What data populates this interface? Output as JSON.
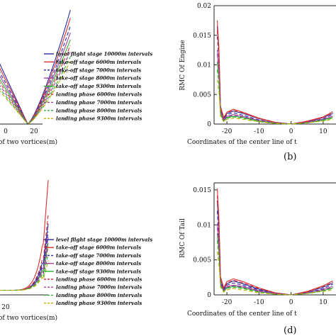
{
  "legend_entries": [
    {
      "name": "level flight stage 10000m intervals",
      "color": "#2a2aa8",
      "dash": "solid"
    },
    {
      "name": "take-off stage 6000m intervals",
      "color": "#d83030",
      "dash": "solid"
    },
    {
      "name": "take-off stage 7000m intervals",
      "color": "#2a2aa8",
      "dash": "dashed"
    },
    {
      "name": "take-off stage 8000m intervals",
      "color": "#a040a0",
      "dash": "solid"
    },
    {
      "name": "take-off stage 9300m intervals",
      "color": "#30b030",
      "dash": "solid"
    },
    {
      "name": "landing phase 6000m intervals",
      "color": "#d83030",
      "dash": "dashed"
    },
    {
      "name": "landing phase 7000m intervals",
      "color": "#a040a0",
      "dash": "dashed"
    },
    {
      "name": "landing phase 8000m intervals",
      "color": "#30b030",
      "dash": "dashed"
    },
    {
      "name": "landing phase 9300m intervals",
      "color": "#c0b000",
      "dash": "dashed"
    }
  ],
  "chart_data": [
    {
      "type": "line",
      "panel": "a",
      "xlabel_visible": "of two vortices(m)",
      "x_ticks": [
        "0",
        "20"
      ],
      "x_range": [
        -8,
        28
      ],
      "y_range": [
        0,
        1
      ],
      "series": [
        {
          "values_at_x_24": 1.0
        },
        {
          "values_at_x_24": 0.93
        },
        {
          "values_at_x_24": 0.86
        },
        {
          "values_at_x_24": 0.8
        },
        {
          "values_at_x_24": 0.74
        },
        {
          "values_at_x_24": 0.69
        },
        {
          "values_at_x_24": 0.64
        },
        {
          "values_at_x_24": 0.59
        },
        {
          "values_at_x_24": 0.55
        }
      ]
    },
    {
      "type": "line",
      "panel": "b",
      "ylabel": "RMC Of Engine",
      "xlabel_visible": "Coordinates of the center line of t",
      "y_ticks": [
        "0",
        "0.005",
        "0.01",
        "0.015",
        "0.02"
      ],
      "x_ticks": [
        "-20",
        "-10",
        "0",
        "10"
      ],
      "x_range": [
        -24,
        14
      ],
      "y_range": [
        0,
        0.02
      ],
      "x": [
        -23,
        -22.5,
        -22,
        -21,
        -20,
        -18,
        -15,
        -10,
        -5,
        0,
        5,
        10,
        13
      ],
      "series": [
        {
          "values": [
            0.0165,
            0.0122,
            0.0025,
            0.0009,
            0.0018,
            0.0022,
            0.0018,
            0.0009,
            0.0003,
            0.0,
            0.0004,
            0.0011,
            0.0018
          ]
        },
        {
          "values": [
            0.0175,
            0.013,
            0.003,
            0.0011,
            0.002,
            0.0025,
            0.002,
            0.001,
            0.0003,
            0.0,
            0.0005,
            0.0012,
            0.0021
          ]
        },
        {
          "values": [
            0.0148,
            0.011,
            0.0026,
            0.0008,
            0.0016,
            0.0019,
            0.0015,
            0.0007,
            0.0002,
            0.0,
            0.0003,
            0.0009,
            0.0016
          ]
        },
        {
          "values": [
            0.0125,
            0.0092,
            0.0021,
            0.0007,
            0.0013,
            0.0016,
            0.0013,
            0.0006,
            0.0002,
            0.0,
            0.0003,
            0.0008,
            0.0013
          ]
        },
        {
          "values": [
            0.0105,
            0.0078,
            0.0018,
            0.0005,
            0.0011,
            0.0013,
            0.0011,
            0.0005,
            0.0002,
            0.0,
            0.0002,
            0.0007,
            0.0011
          ]
        },
        {
          "values": [
            0.0158,
            0.0118,
            0.0027,
            0.001,
            0.0019,
            0.0023,
            0.0019,
            0.0009,
            0.0003,
            0.0,
            0.0004,
            0.0011,
            0.0019
          ]
        },
        {
          "values": [
            0.0118,
            0.0088,
            0.002,
            0.0006,
            0.0012,
            0.0015,
            0.0012,
            0.0006,
            0.0002,
            0.0,
            0.0003,
            0.0008,
            0.0013
          ]
        },
        {
          "values": [
            0.0092,
            0.0068,
            0.0016,
            0.0005,
            0.001,
            0.0012,
            0.001,
            0.0004,
            0.0001,
            0.0,
            0.0002,
            0.0006,
            0.001
          ]
        },
        {
          "values": [
            0.0075,
            0.0055,
            0.0013,
            0.0004,
            0.0008,
            0.001,
            0.0008,
            0.0004,
            0.0001,
            0.0,
            0.0002,
            0.0005,
            0.0008
          ]
        }
      ],
      "panel_letter": "(b)"
    },
    {
      "type": "line",
      "panel": "c",
      "xlabel_visible": "of two vortices(m)",
      "x_ticks": [
        "20"
      ],
      "x_range": [
        5,
        28
      ],
      "y_range": [
        0,
        1
      ],
      "series": [
        {
          "peak": 0.62
        },
        {
          "peak": 1.0
        },
        {
          "peak": 0.55
        },
        {
          "peak": 0.5
        },
        {
          "peak": 0.45
        },
        {
          "peak": 0.7
        },
        {
          "peak": 0.42
        },
        {
          "peak": 0.36
        },
        {
          "peak": 0.3
        }
      ]
    },
    {
      "type": "line",
      "panel": "d",
      "ylabel": "RMC Of Tail",
      "xlabel_visible": "Coordinates of the center line of t",
      "y_ticks": [
        "0",
        "0.005",
        "0.01",
        "0.015"
      ],
      "x_ticks": [
        "-20",
        "-10",
        "0",
        "10"
      ],
      "x_range": [
        -24,
        14
      ],
      "y_range": [
        0,
        0.016
      ],
      "x": [
        -23,
        -22.5,
        -22,
        -21,
        -20,
        -18,
        -15,
        -10,
        -5,
        0,
        5,
        10,
        13
      ],
      "series": [
        {
          "values": [
            0.0135,
            0.0095,
            0.0022,
            0.0008,
            0.0016,
            0.002,
            0.0016,
            0.0008,
            0.0003,
            0.0,
            0.0004,
            0.0011,
            0.0017
          ]
        },
        {
          "values": [
            0.0152,
            0.011,
            0.0026,
            0.001,
            0.0019,
            0.0023,
            0.0019,
            0.001,
            0.0003,
            0.0,
            0.0005,
            0.0013,
            0.002
          ]
        },
        {
          "values": [
            0.012,
            0.0085,
            0.002,
            0.0007,
            0.0014,
            0.0017,
            0.0014,
            0.0007,
            0.0002,
            0.0,
            0.0003,
            0.0009,
            0.0015
          ]
        },
        {
          "values": [
            0.0102,
            0.0072,
            0.0017,
            0.0006,
            0.0012,
            0.0014,
            0.0012,
            0.0006,
            0.0002,
            0.0,
            0.0003,
            0.0008,
            0.0012
          ]
        },
        {
          "values": [
            0.0088,
            0.0062,
            0.0015,
            0.0005,
            0.001,
            0.0012,
            0.001,
            0.0005,
            0.0001,
            0.0,
            0.0002,
            0.0006,
            0.001
          ]
        },
        {
          "values": [
            0.0142,
            0.0102,
            0.0024,
            0.0009,
            0.0017,
            0.0021,
            0.0017,
            0.0009,
            0.0003,
            0.0,
            0.0004,
            0.0012,
            0.0018
          ]
        },
        {
          "values": [
            0.0096,
            0.0068,
            0.0016,
            0.0006,
            0.0011,
            0.0013,
            0.0011,
            0.0005,
            0.0002,
            0.0,
            0.0003,
            0.0007,
            0.0011
          ]
        },
        {
          "values": [
            0.0078,
            0.0055,
            0.0013,
            0.0005,
            0.0009,
            0.0011,
            0.0009,
            0.0004,
            0.0001,
            0.0,
            0.0002,
            0.0006,
            0.0009
          ]
        },
        {
          "values": [
            0.0062,
            0.0044,
            0.0011,
            0.0004,
            0.0007,
            0.0009,
            0.0007,
            0.0003,
            0.0001,
            0.0,
            0.0002,
            0.0005,
            0.0007
          ]
        }
      ],
      "panel_letter": "(d)"
    }
  ]
}
